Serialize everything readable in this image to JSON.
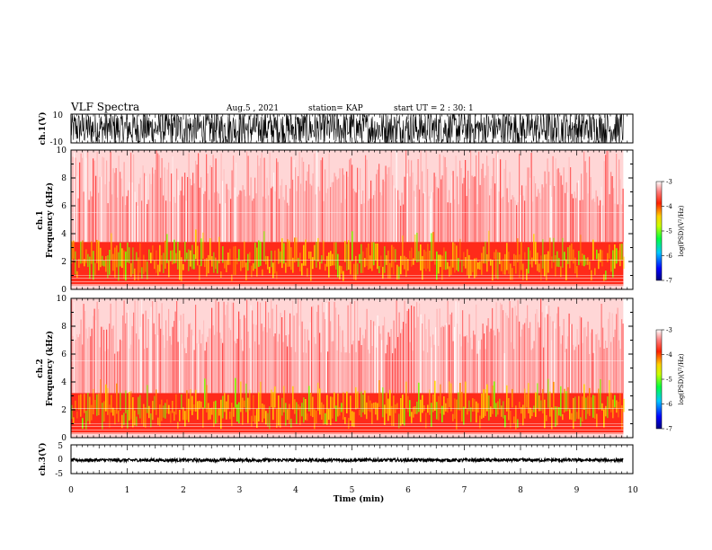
{
  "header": {
    "title": "VLF Spectra",
    "date": "Aug.5 , 2021",
    "station": "station= KAP",
    "start_ut": "start UT = 2 : 30: 1"
  },
  "colors": {
    "background": "#ffffff",
    "ink": "#000000",
    "spectrogram_low": "#ff1a1a",
    "spectrogram_high": "#ffd200",
    "spectrogram_peak": "#00e000"
  },
  "chart_data": [
    {
      "type": "line",
      "name": "ch1-waveform",
      "ylabel": "ch.1(V)",
      "yticks": [
        "10",
        "-10"
      ],
      "ylim": [
        -10,
        10
      ],
      "xlim": [
        0,
        10
      ],
      "data_end_min": 9.83,
      "amplitude": "saturated ±10 V noise"
    },
    {
      "type": "heatmap",
      "name": "ch1-spectrogram",
      "ylabel_channel": "ch.1",
      "ylabel": "Frequency (kHz)",
      "ylim": [
        0,
        10
      ],
      "yticks": [
        "0",
        "2",
        "4",
        "6",
        "8",
        "10"
      ],
      "xlim": [
        0,
        10
      ],
      "data_end_min": 9.83,
      "intense_band_khz": [
        0.3,
        3.4
      ],
      "colorbar": {
        "label": "log(PSD)(V²/Hz)",
        "range": [
          -7,
          -3
        ],
        "ticks": [
          "-3",
          "-4",
          "-5",
          "-6",
          "-7"
        ]
      }
    },
    {
      "type": "heatmap",
      "name": "ch2-spectrogram",
      "ylabel_channel": "ch.2",
      "ylabel": "Frequency (kHz)",
      "ylim": [
        0,
        10
      ],
      "yticks": [
        "0",
        "2",
        "4",
        "6",
        "8",
        "10"
      ],
      "xlim": [
        0,
        10
      ],
      "data_end_min": 9.83,
      "intense_band_khz": [
        0.3,
        3.2
      ],
      "colorbar": {
        "label": "log(PSD)(V²/Hz)",
        "range": [
          -7,
          -3
        ],
        "ticks": [
          "-3",
          "-4",
          "-5",
          "-6",
          "-7"
        ]
      }
    },
    {
      "type": "line",
      "name": "ch3-waveform",
      "ylabel": "ch.3(V)",
      "yticks": [
        "5",
        "0",
        "-5"
      ],
      "ylim": [
        -5,
        5
      ],
      "xlim": [
        0,
        10
      ],
      "data_end_min": 9.83,
      "mean_value": 0,
      "amplitude": "small noise around 0 V"
    }
  ],
  "xaxis": {
    "label": "Time (min)",
    "ticks": [
      "0",
      "1",
      "2",
      "3",
      "4",
      "5",
      "6",
      "7",
      "8",
      "9",
      "10"
    ]
  }
}
